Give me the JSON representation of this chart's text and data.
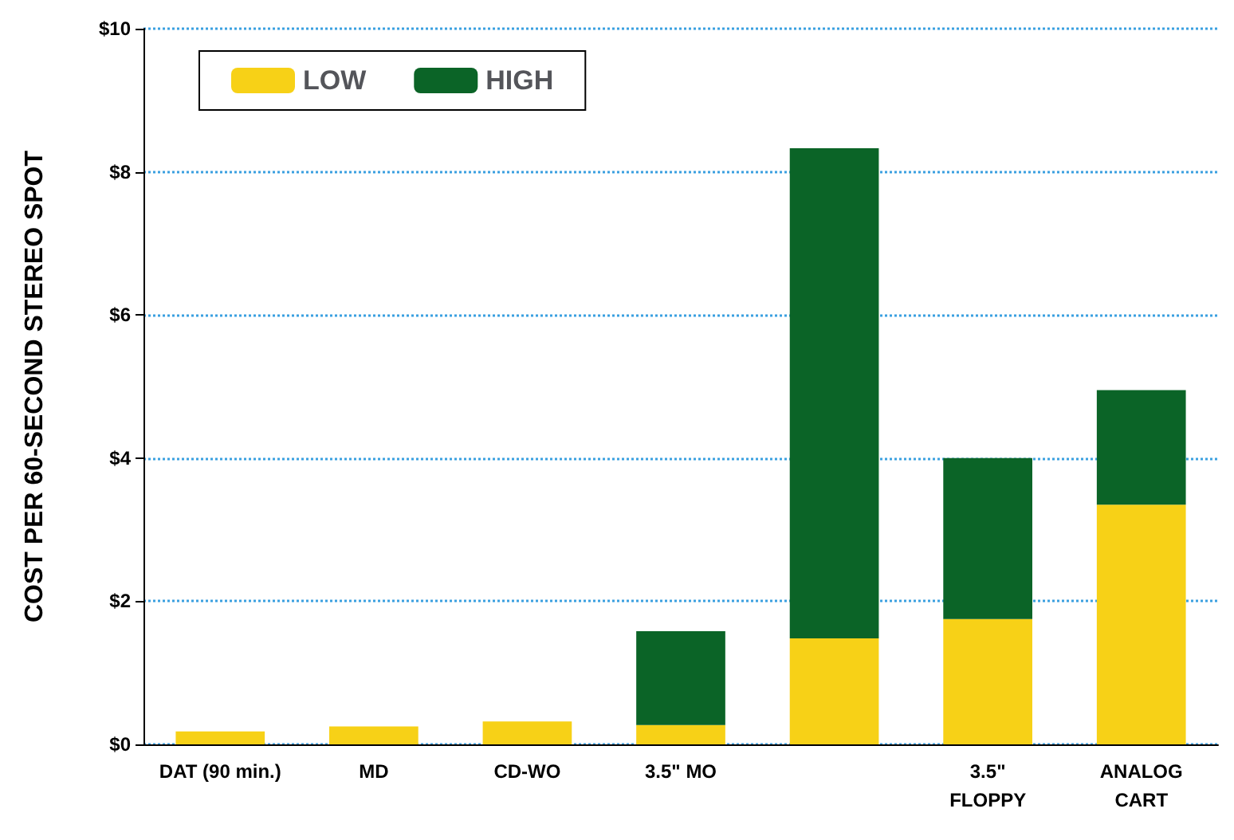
{
  "chart_data": {
    "type": "bar",
    "stacked": true,
    "ylabel": "COST PER 60-SECOND STEREO SPOT",
    "categories": [
      "DAT (90 min.)",
      "MD",
      "CD-WO",
      "3.5\" MO",
      null,
      "3.5\"\nFLOPPY",
      "ANALOG\nCART"
    ],
    "series": [
      {
        "name": "LOW",
        "color": "#f7d117",
        "values": [
          0.18,
          0.25,
          0.32,
          0.27,
          1.48,
          1.75,
          3.35
        ]
      },
      {
        "name": "HIGH",
        "color": "#0b6427",
        "values": [
          0,
          0,
          0,
          1.31,
          6.85,
          2.25,
          1.6
        ]
      }
    ],
    "ylim": [
      0,
      10
    ],
    "yticks": [
      {
        "value": 0,
        "label": "$0"
      },
      {
        "value": 2,
        "label": "$2"
      },
      {
        "value": 4,
        "label": "$4"
      },
      {
        "value": 6,
        "label": "$6"
      },
      {
        "value": 8,
        "label": "$8"
      },
      {
        "value": 10,
        "label": "$10"
      }
    ],
    "grid": "y",
    "legend": "top left"
  }
}
